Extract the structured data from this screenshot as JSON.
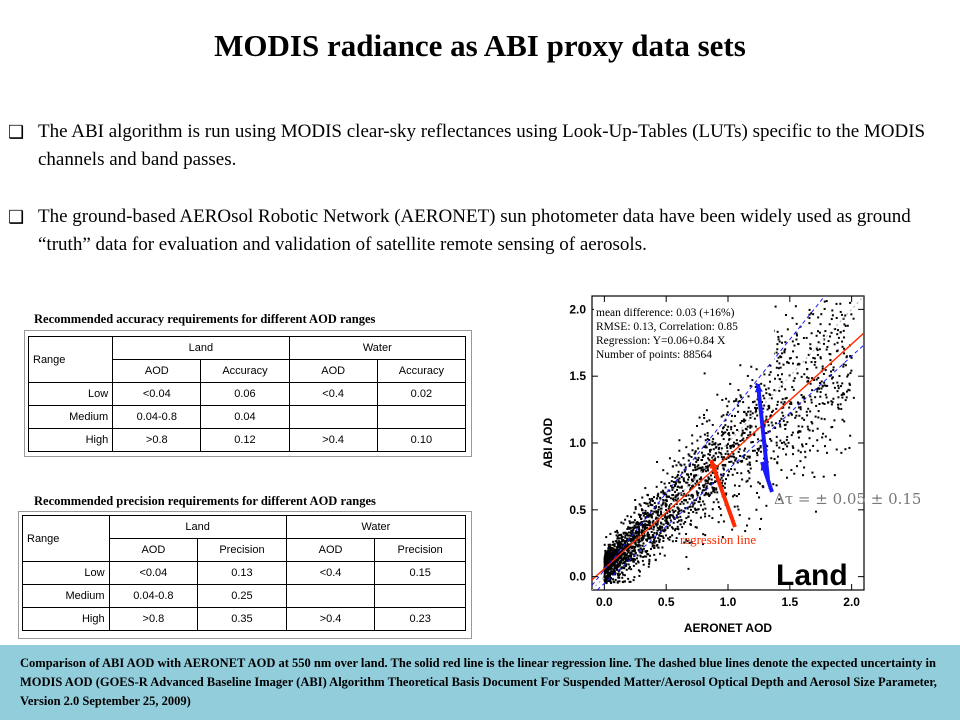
{
  "title": "MODIS radiance as ABI proxy data sets",
  "bullets": [
    {
      "marker": "❑",
      "text": "The ABI algorithm is run using MODIS clear-sky reflectances using Look-Up-Tables (LUTs) specific to the MODIS channels and band passes."
    },
    {
      "marker": "❑",
      "text": "The ground-based AEROsol Robotic Network (AERONET) sun photometer data have been widely used as ground “truth” data for evaluation and validation of satellite remote sensing of aerosols."
    }
  ],
  "accuracy_table": {
    "caption": "Recommended accuracy requirements for different AOD ranges",
    "range_header": "Range",
    "land_header": "Land",
    "water_header": "Water",
    "sub_headers": [
      "AOD",
      "Accuracy",
      "AOD",
      "Accuracy"
    ],
    "rows": [
      {
        "range": "Low",
        "land_aod": "<0.04",
        "land_val": "0.06",
        "water_aod": "<0.4",
        "water_val": "0.02"
      },
      {
        "range": "Medium",
        "land_aod": "0.04-0.8",
        "land_val": "0.04",
        "water_aod": "",
        "water_val": ""
      },
      {
        "range": "High",
        "land_aod": ">0.8",
        "land_val": "0.12",
        "water_aod": ">0.4",
        "water_val": "0.10"
      }
    ]
  },
  "precision_table": {
    "caption": "Recommended precision requirements for different AOD ranges",
    "range_header": "Range",
    "land_header": "Land",
    "water_header": "Water",
    "sub_headers": [
      "AOD",
      "Precision",
      "AOD",
      "Precision"
    ],
    "rows": [
      {
        "range": "Low",
        "land_aod": "<0.04",
        "land_val": "0.13",
        "water_aod": "<0.4",
        "water_val": "0.15"
      },
      {
        "range": "Medium",
        "land_aod": "0.04-0.8",
        "land_val": "0.25",
        "water_aod": "",
        "water_val": ""
      },
      {
        "range": "High",
        "land_aod": ">0.8",
        "land_val": "0.35",
        "water_aod": ">0.4",
        "water_val": "0.23"
      }
    ]
  },
  "plot": {
    "xlabel": "AERONET AOD",
    "ylabel": "ABI AOD",
    "xticks": [
      "0.0",
      "0.5",
      "1.0",
      "1.5",
      "2.0"
    ],
    "yticks": [
      "0.0",
      "0.5",
      "1.0",
      "1.5",
      "2.0"
    ],
    "stats": [
      "mean difference: 0.03 (+16%)",
      "RMSE: 0.13, Correlation: 0.85",
      "Regression: Y=0.06+0.84 X",
      "Number of points: 88564"
    ],
    "uncertainty_label": "Δτ = ± 0.05 ± 0.15τ",
    "regression_label": "regression line",
    "panel_label": "Land",
    "colors": {
      "points": "#000000",
      "regression": "#ff2a00",
      "uncertainty": "#1a1aff",
      "one_to_one": "#aaaaaa"
    }
  },
  "footer": {
    "text": "Comparison of ABI AOD with AERONET AOD at 550 nm over land. The solid red line is the linear regression line. The dashed blue lines denote the expected uncertainty  in MODIS AOD (GOES-R Advanced Baseline Imager (ABI) Algorithm Theoretical Basis Document For Suspended Matter/Aerosol Optical Depth and Aerosol Size Parameter, Version 2.0 September 25, 2009)",
    "color": "#92cddc"
  }
}
